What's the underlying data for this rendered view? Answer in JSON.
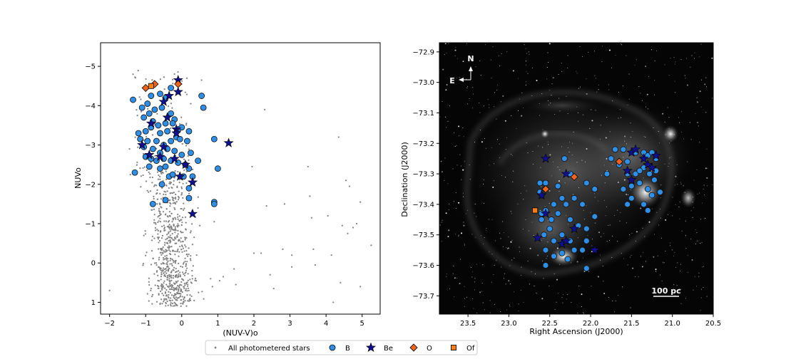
{
  "chart_data": [
    {
      "type": "scatter",
      "title": "",
      "xlabel": "(NUV-V)o",
      "ylabel": "NUVo",
      "xlim": [
        -2.25,
        5.5
      ],
      "ylim": [
        1.3,
        -5.6
      ],
      "y_inverted": true,
      "xticks": [
        -2,
        -1,
        0,
        1,
        2,
        3,
        4,
        5
      ],
      "yticks": [
        -5,
        -4,
        -3,
        -2,
        -1,
        0,
        1
      ],
      "xtick_labels": [
        "−2",
        "−1",
        "0",
        "1",
        "2",
        "3",
        "4",
        "5"
      ],
      "ytick_labels": [
        "−5",
        "−4",
        "−3",
        "−2",
        "−1",
        "0",
        "1"
      ],
      "grid": false,
      "series": [
        {
          "name": "All photometered stars",
          "marker": "dot",
          "color": "#808080",
          "note_generated": true,
          "outliers": [
            [
              -2.0,
              0.7
            ],
            [
              2.3,
              -3.9
            ],
            [
              4.35,
              -3.2
            ],
            [
              1.95,
              -2.45
            ],
            [
              2.35,
              -1.45
            ],
            [
              2.85,
              -1.5
            ],
            [
              3.5,
              -2.45
            ],
            [
              3.55,
              -1.7
            ],
            [
              3.6,
              -1.15
            ],
            [
              4.05,
              -1.2
            ],
            [
              4.55,
              -2.1
            ],
            [
              4.65,
              -1.95
            ],
            [
              4.85,
              -1.0
            ],
            [
              4.95,
              -1.55
            ],
            [
              5.25,
              -0.45
            ],
            [
              4.15,
              -0.2
            ],
            [
              4.6,
              -0.75
            ],
            [
              4.45,
              -0.95
            ],
            [
              4.75,
              -0.9
            ],
            [
              4.4,
              0.5
            ],
            [
              4.2,
              1.0
            ],
            [
              4.95,
              0.6
            ],
            [
              2.0,
              -0.25
            ],
            [
              2.2,
              -0.25
            ],
            [
              2.45,
              0.3
            ],
            [
              2.8,
              -0.35
            ],
            [
              3.05,
              0.1
            ],
            [
              3.05,
              -0.2
            ],
            [
              3.7,
              0.05
            ],
            [
              3.65,
              -0.35
            ],
            [
              2.55,
              0.65
            ],
            [
              1.45,
              0.15
            ],
            [
              1.05,
              0.45
            ],
            [
              0.85,
              0.6
            ],
            [
              0.8,
              0.4
            ],
            [
              0.4,
              0.45
            ],
            [
              1.5,
              0.55
            ],
            [
              0.9,
              -1.05
            ],
            [
              0.45,
              -1.4
            ],
            [
              0.5,
              -0.95
            ],
            [
              1.15,
              0.35
            ],
            [
              0.55,
              -4.65
            ],
            [
              0.25,
              -4.05
            ],
            [
              -1.35,
              -4.8
            ],
            [
              -1.45,
              -2.9
            ],
            [
              -1.05,
              -0.7
            ],
            [
              -0.85,
              0.65
            ]
          ]
        },
        {
          "name": "B",
          "marker": "circle",
          "color": "#2f8fe6",
          "edge": "#111111",
          "points": [
            [
              -1.35,
              -4.15
            ],
            [
              -1.1,
              -3.95
            ],
            [
              -0.95,
              -4.05
            ],
            [
              -0.85,
              -4.25
            ],
            [
              -0.6,
              -4.3
            ],
            [
              -0.45,
              -4.2
            ],
            [
              -0.3,
              -4.45
            ],
            [
              0.55,
              -4.25
            ],
            [
              0.6,
              -3.95
            ],
            [
              -0.9,
              -3.8
            ],
            [
              -0.75,
              -3.9
            ],
            [
              -0.55,
              -3.95
            ],
            [
              -0.3,
              -3.8
            ],
            [
              -0.2,
              -3.65
            ],
            [
              -1.05,
              -3.7
            ],
            [
              -0.8,
              -3.6
            ],
            [
              -0.65,
              -3.5
            ],
            [
              -0.45,
              -3.55
            ],
            [
              -0.25,
              -3.55
            ],
            [
              -1.2,
              -3.3
            ],
            [
              -1.0,
              -3.35
            ],
            [
              -0.85,
              -3.45
            ],
            [
              -0.6,
              -3.3
            ],
            [
              -0.4,
              -3.35
            ],
            [
              -0.1,
              -3.4
            ],
            [
              0.0,
              -3.45
            ],
            [
              0.2,
              -3.35
            ],
            [
              -1.15,
              -3.15
            ],
            [
              -0.95,
              -3.1
            ],
            [
              -0.7,
              -3.1
            ],
            [
              -0.5,
              -3.0
            ],
            [
              -0.3,
              -3.1
            ],
            [
              -0.15,
              -3.2
            ],
            [
              -0.05,
              -3.15
            ],
            [
              0.15,
              -3.1
            ],
            [
              0.9,
              -3.15
            ],
            [
              -1.05,
              -2.95
            ],
            [
              -0.8,
              -2.9
            ],
            [
              -0.6,
              -2.8
            ],
            [
              -0.4,
              -2.9
            ],
            [
              -0.2,
              -2.85
            ],
            [
              0.0,
              -2.75
            ],
            [
              0.25,
              -2.8
            ],
            [
              -1.0,
              -2.7
            ],
            [
              -0.85,
              -2.65
            ],
            [
              -0.7,
              -2.6
            ],
            [
              -0.5,
              -2.65
            ],
            [
              -0.3,
              -2.6
            ],
            [
              -0.1,
              -2.55
            ],
            [
              0.1,
              -2.5
            ],
            [
              0.45,
              -2.6
            ],
            [
              -0.9,
              -2.45
            ],
            [
              -0.6,
              -2.4
            ],
            [
              -0.45,
              -2.45
            ],
            [
              0.2,
              -2.4
            ],
            [
              1.0,
              -2.4
            ],
            [
              -1.3,
              -2.3
            ],
            [
              -0.35,
              -2.2
            ],
            [
              -0.25,
              -2.25
            ],
            [
              0.05,
              -2.2
            ],
            [
              0.3,
              -2.2
            ],
            [
              0.2,
              -1.9
            ],
            [
              0.2,
              -1.65
            ],
            [
              0.9,
              -1.55
            ],
            [
              0.9,
              -1.5
            ],
            [
              -0.8,
              -1.5
            ],
            [
              -0.45,
              -1.6
            ],
            [
              -0.55,
              -2.0
            ]
          ]
        },
        {
          "name": "Be",
          "marker": "star",
          "color": "#10108f",
          "edge": "#000000",
          "points": [
            [
              -0.1,
              -4.65
            ],
            [
              -0.1,
              -4.35
            ],
            [
              -0.35,
              -4.25
            ],
            [
              -0.5,
              -4.1
            ],
            [
              -0.4,
              -3.7
            ],
            [
              -0.85,
              -3.55
            ],
            [
              -0.15,
              -3.4
            ],
            [
              -0.15,
              -3.3
            ],
            [
              -1.1,
              -3.0
            ],
            [
              1.3,
              -3.05
            ],
            [
              -0.5,
              -2.95
            ],
            [
              -0.9,
              -2.75
            ],
            [
              -0.6,
              -2.7
            ],
            [
              -0.2,
              -2.65
            ],
            [
              0.1,
              -2.5
            ],
            [
              -0.05,
              -2.2
            ],
            [
              0.3,
              -2.05
            ],
            [
              0.3,
              -1.25
            ]
          ]
        },
        {
          "name": "O",
          "marker": "diamond",
          "color": "#f0641e",
          "edge": "#000000",
          "points": [
            [
              -1.0,
              -4.45
            ],
            [
              -0.75,
              -4.55
            ],
            [
              -0.1,
              -4.55
            ]
          ]
        },
        {
          "name": "Of",
          "marker": "square",
          "color": "#ff7f0e",
          "edge": "#000000",
          "points": [
            [
              -0.85,
              -4.5
            ]
          ]
        }
      ]
    },
    {
      "type": "scatter",
      "title": "",
      "xlabel": "Right Ascension (J2000)",
      "ylabel": "Declination (J2000)",
      "xlim": [
        23.85,
        20.5
      ],
      "ylim": [
        -73.76,
        -72.87
      ],
      "x_inverted": true,
      "xticks": [
        23.5,
        23.0,
        22.5,
        22.0,
        21.5,
        21.0,
        20.5
      ],
      "yticks": [
        -72.9,
        -73.0,
        -73.1,
        -73.2,
        -73.3,
        -73.4,
        -73.5,
        -73.6,
        -73.7
      ],
      "xtick_labels": [
        "23.5",
        "23.0",
        "22.5",
        "22.0",
        "21.5",
        "21.0",
        "20.5"
      ],
      "ytick_labels": [
        "−72.9",
        "−73.0",
        "−73.1",
        "−73.2",
        "−73.3",
        "−73.4",
        "−73.5",
        "−73.6",
        "−73.7"
      ],
      "background": "H-alpha nebula image (grayscale)",
      "compass": {
        "north": "N",
        "east": "E"
      },
      "scale_bar": "100 pc",
      "series": [
        {
          "name": "B",
          "marker": "circle",
          "color": "#2f8fe6",
          "edge": "#111111",
          "points": [
            [
              22.62,
              -73.33
            ],
            [
              22.55,
              -73.33
            ],
            [
              22.32,
              -73.25
            ],
            [
              22.25,
              -73.3
            ],
            [
              22.05,
              -73.33
            ],
            [
              21.95,
              -73.35
            ],
            [
              22.2,
              -73.38
            ],
            [
              22.1,
              -73.4
            ],
            [
              22.35,
              -73.38
            ],
            [
              22.45,
              -73.4
            ],
            [
              22.6,
              -73.37
            ],
            [
              22.55,
              -73.42
            ],
            [
              22.48,
              -73.45
            ],
            [
              22.4,
              -73.43
            ],
            [
              22.3,
              -73.4
            ],
            [
              22.25,
              -73.45
            ],
            [
              22.6,
              -73.45
            ],
            [
              22.57,
              -73.5
            ],
            [
              22.5,
              -73.48
            ],
            [
              22.45,
              -73.52
            ],
            [
              22.35,
              -73.5
            ],
            [
              22.25,
              -73.52
            ],
            [
              22.15,
              -73.47
            ],
            [
              22.05,
              -73.48
            ],
            [
              21.95,
              -73.44
            ],
            [
              22.55,
              -73.55
            ],
            [
              22.45,
              -73.57
            ],
            [
              22.35,
              -73.56
            ],
            [
              22.2,
              -73.55
            ],
            [
              22.1,
              -73.55
            ],
            [
              22.05,
              -73.52
            ],
            [
              22.28,
              -73.58
            ],
            [
              22.55,
              -73.6
            ],
            [
              22.05,
              -73.61
            ],
            [
              22.6,
              -73.43
            ],
            [
              22.62,
              -73.36
            ],
            [
              22.4,
              -73.34
            ],
            [
              21.75,
              -73.25
            ],
            [
              21.7,
              -73.22
            ],
            [
              21.6,
              -73.22
            ],
            [
              21.55,
              -73.26
            ],
            [
              21.45,
              -73.23
            ],
            [
              21.35,
              -73.23
            ],
            [
              21.3,
              -73.24
            ],
            [
              21.25,
              -73.23
            ],
            [
              21.2,
              -73.25
            ],
            [
              21.8,
              -73.3
            ],
            [
              21.65,
              -73.27
            ],
            [
              21.55,
              -73.3
            ],
            [
              21.45,
              -73.3
            ],
            [
              21.35,
              -73.28
            ],
            [
              21.28,
              -73.3
            ],
            [
              21.22,
              -73.32
            ],
            [
              21.6,
              -73.35
            ],
            [
              21.5,
              -73.34
            ],
            [
              21.4,
              -73.33
            ],
            [
              21.3,
              -73.35
            ],
            [
              21.25,
              -73.37
            ],
            [
              21.5,
              -73.38
            ],
            [
              21.35,
              -73.4
            ],
            [
              21.3,
              -73.42
            ],
            [
              21.55,
              -73.4
            ],
            [
              21.15,
              -73.36
            ],
            [
              21.4,
              -73.29
            ],
            [
              21.2,
              -73.29
            ]
          ]
        },
        {
          "name": "Be",
          "marker": "star",
          "color": "#10108f",
          "edge": "#000000",
          "points": [
            [
              22.55,
              -73.25
            ],
            [
              22.3,
              -73.3
            ],
            [
              22.6,
              -73.37
            ],
            [
              22.55,
              -73.43
            ],
            [
              22.65,
              -73.51
            ],
            [
              22.35,
              -73.53
            ],
            [
              22.3,
              -73.52
            ],
            [
              22.2,
              -73.48
            ],
            [
              21.95,
              -73.55
            ],
            [
              21.5,
              -73.23
            ],
            [
              21.45,
              -73.22
            ],
            [
              21.35,
              -73.25
            ],
            [
              21.3,
              -73.27
            ],
            [
              21.2,
              -73.24
            ],
            [
              21.55,
              -73.29
            ],
            [
              21.5,
              -73.32
            ],
            [
              21.25,
              -73.28
            ]
          ]
        },
        {
          "name": "O",
          "marker": "diamond",
          "color": "#f0641e",
          "edge": "#000000",
          "points": [
            [
              22.2,
              -73.31
            ],
            [
              22.55,
              -73.35
            ],
            [
              21.65,
              -73.26
            ]
          ]
        },
        {
          "name": "Of",
          "marker": "square",
          "color": "#ff7f0e",
          "edge": "#000000",
          "points": [
            [
              22.68,
              -73.42
            ]
          ]
        }
      ]
    }
  ],
  "legend": {
    "placement": "bottom-center",
    "entries": [
      {
        "label": "All photometered stars",
        "marker": "dot",
        "color": "#808080"
      },
      {
        "label": "B",
        "marker": "circle",
        "color": "#2f8fe6"
      },
      {
        "label": "Be",
        "marker": "star",
        "color": "#10108f"
      },
      {
        "label": "O",
        "marker": "diamond",
        "color": "#f0641e"
      },
      {
        "label": "Of",
        "marker": "square",
        "color": "#ff7f0e"
      }
    ]
  }
}
